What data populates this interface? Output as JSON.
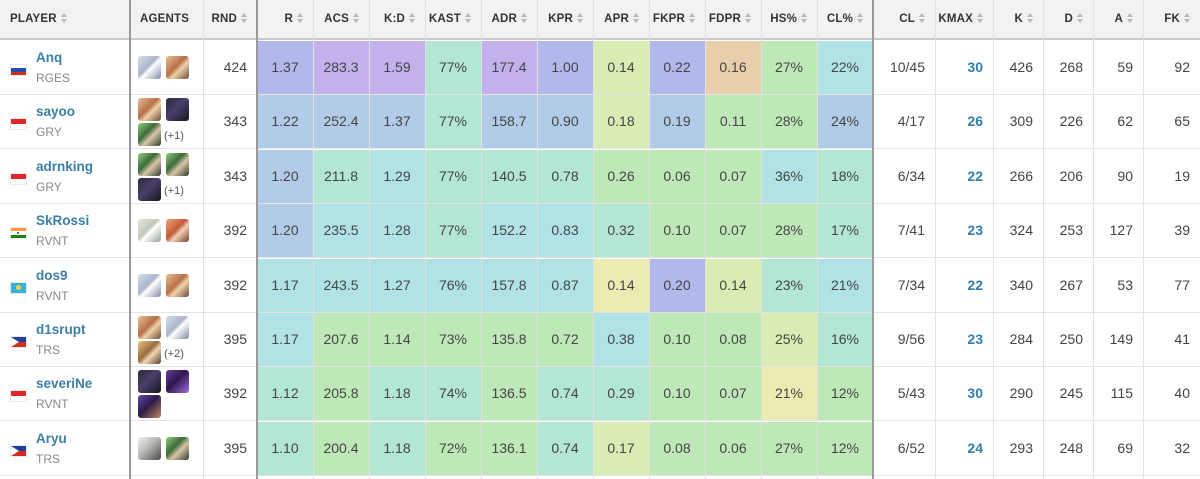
{
  "header": {
    "player": "PLAYER",
    "agents": "AGENTS",
    "rnd": "RND",
    "r": "R",
    "acs": "ACS",
    "kd": "K:D",
    "kast": "KAST",
    "adr": "ADR",
    "kpr": "KPR",
    "apr": "APR",
    "fkpr": "FKPR",
    "fdpr": "FDPR",
    "hs": "HS%",
    "cl_pct": "CL%",
    "cl": "CL",
    "kmax": "KMAX",
    "k": "K",
    "d": "D",
    "a": "A",
    "fk": "FK"
  },
  "colors": {
    "purple": "#c3b1ec",
    "lavender": "#b3b8ea",
    "blue": "#b2cbe8",
    "cyan": "#b1e3e6",
    "teal": "#b3e6d3",
    "green": "#bfe8b8",
    "lime": "#d8ecb3",
    "yellow": "#ecebb2",
    "tan": "#e8cfac",
    "link": "#3b7fa8",
    "kmax": "#2f7fb3"
  },
  "rows": [
    {
      "name": "Anq",
      "team": "RGES",
      "flag": "ru-flag",
      "agents": [
        "jett-icon",
        "sova-icon"
      ],
      "more": "",
      "rnd": "424",
      "r": "1.37",
      "acs": "283.3",
      "kd": "1.59",
      "kast": "77%",
      "adr": "177.4",
      "kpr": "1.00",
      "apr": "0.14",
      "fkpr": "0.22",
      "fdpr": "0.16",
      "hs": "27%",
      "cl_pct": "22%",
      "cl": "10/45",
      "kmax": "30",
      "k": "426",
      "d": "268",
      "a": "59",
      "fk": "92",
      "heat": [
        "lavender",
        "purple",
        "purple",
        "teal",
        "purple",
        "lavender",
        "lime",
        "lavender",
        "tan",
        "green",
        "cyan"
      ]
    },
    {
      "name": "sayoo",
      "team": "GRY",
      "flag": "id-flag",
      "agents": [
        "sova-icon",
        "omen-icon",
        "viper-icon"
      ],
      "more": "(+1)",
      "rnd": "343",
      "r": "1.22",
      "acs": "252.4",
      "kd": "1.37",
      "kast": "77%",
      "adr": "158.7",
      "kpr": "0.90",
      "apr": "0.18",
      "fkpr": "0.19",
      "fdpr": "0.11",
      "hs": "28%",
      "cl_pct": "24%",
      "cl": "4/17",
      "kmax": "26",
      "k": "309",
      "d": "226",
      "a": "62",
      "fk": "65",
      "heat": [
        "blue",
        "blue",
        "blue",
        "teal",
        "blue",
        "blue",
        "lime",
        "blue",
        "green",
        "green",
        "blue"
      ]
    },
    {
      "name": "adrnking",
      "team": "GRY",
      "flag": "id-flag",
      "agents": [
        "viper-icon",
        "viper-icon",
        "omen-icon"
      ],
      "more": "(+1)",
      "rnd": "343",
      "r": "1.20",
      "acs": "211.8",
      "kd": "1.29",
      "kast": "77%",
      "adr": "140.5",
      "kpr": "0.78",
      "apr": "0.26",
      "fkpr": "0.06",
      "fdpr": "0.07",
      "hs": "36%",
      "cl_pct": "18%",
      "cl": "6/34",
      "kmax": "22",
      "k": "266",
      "d": "206",
      "a": "90",
      "fk": "19",
      "heat": [
        "blue",
        "teal",
        "cyan",
        "teal",
        "teal",
        "teal",
        "green",
        "green",
        "green",
        "cyan",
        "teal"
      ]
    },
    {
      "name": "SkRossi",
      "team": "RVNT",
      "flag": "in-flag",
      "agents": [
        "sage-icon",
        "phoenix-icon"
      ],
      "more": "",
      "rnd": "392",
      "r": "1.20",
      "acs": "235.5",
      "kd": "1.28",
      "kast": "77%",
      "adr": "152.2",
      "kpr": "0.83",
      "apr": "0.32",
      "fkpr": "0.10",
      "fdpr": "0.07",
      "hs": "28%",
      "cl_pct": "17%",
      "cl": "7/41",
      "kmax": "23",
      "k": "324",
      "d": "253",
      "a": "127",
      "fk": "39",
      "heat": [
        "blue",
        "cyan",
        "cyan",
        "teal",
        "cyan",
        "cyan",
        "teal",
        "green",
        "green",
        "green",
        "teal"
      ]
    },
    {
      "name": "dos9",
      "team": "RVNT",
      "flag": "kz-flag",
      "agents": [
        "jett-icon",
        "sova-icon"
      ],
      "more": "",
      "rnd": "392",
      "r": "1.17",
      "acs": "243.5",
      "kd": "1.27",
      "kast": "76%",
      "adr": "157.8",
      "kpr": "0.87",
      "apr": "0.14",
      "fkpr": "0.20",
      "fdpr": "0.14",
      "hs": "23%",
      "cl_pct": "21%",
      "cl": "7/34",
      "kmax": "22",
      "k": "340",
      "d": "267",
      "a": "53",
      "fk": "77",
      "heat": [
        "cyan",
        "cyan",
        "cyan",
        "cyan",
        "cyan",
        "cyan",
        "yellow",
        "lavender",
        "lime",
        "teal",
        "cyan"
      ]
    },
    {
      "name": "d1srupt",
      "team": "TRS",
      "flag": "ph-flag",
      "agents": [
        "sova-icon",
        "jett-icon",
        "breach-icon"
      ],
      "more": "(+2)",
      "rnd": "395",
      "r": "1.17",
      "acs": "207.6",
      "kd": "1.14",
      "kast": "73%",
      "adr": "135.8",
      "kpr": "0.72",
      "apr": "0.38",
      "fkpr": "0.10",
      "fdpr": "0.08",
      "hs": "25%",
      "cl_pct": "16%",
      "cl": "9/56",
      "kmax": "23",
      "k": "284",
      "d": "250",
      "a": "149",
      "fk": "41",
      "heat": [
        "cyan",
        "green",
        "green",
        "green",
        "green",
        "green",
        "cyan",
        "green",
        "green",
        "lime",
        "teal"
      ]
    },
    {
      "name": "severiNe",
      "team": "RVNT",
      "flag": "id-flag",
      "agents": [
        "omen-icon",
        "reyna-icon",
        "astra-icon"
      ],
      "more": "",
      "rnd": "392",
      "r": "1.12",
      "acs": "205.8",
      "kd": "1.18",
      "kast": "74%",
      "adr": "136.5",
      "kpr": "0.74",
      "apr": "0.29",
      "fkpr": "0.10",
      "fdpr": "0.07",
      "hs": "21%",
      "cl_pct": "12%",
      "cl": "5/43",
      "kmax": "30",
      "k": "290",
      "d": "245",
      "a": "115",
      "fk": "40",
      "heat": [
        "teal",
        "green",
        "teal",
        "teal",
        "green",
        "teal",
        "teal",
        "green",
        "green",
        "yellow",
        "green"
      ]
    },
    {
      "name": "Aryu",
      "team": "TRS",
      "flag": "ph-flag",
      "agents": [
        "cypher-icon",
        "viper-icon"
      ],
      "more": "",
      "rnd": "395",
      "r": "1.10",
      "acs": "200.4",
      "kd": "1.18",
      "kast": "72%",
      "adr": "136.1",
      "kpr": "0.74",
      "apr": "0.17",
      "fkpr": "0.08",
      "fdpr": "0.06",
      "hs": "27%",
      "cl_pct": "12%",
      "cl": "6/52",
      "kmax": "24",
      "k": "293",
      "d": "248",
      "a": "69",
      "fk": "32",
      "heat": [
        "teal",
        "green",
        "teal",
        "green",
        "green",
        "teal",
        "lime",
        "green",
        "green",
        "green",
        "green"
      ]
    }
  ]
}
